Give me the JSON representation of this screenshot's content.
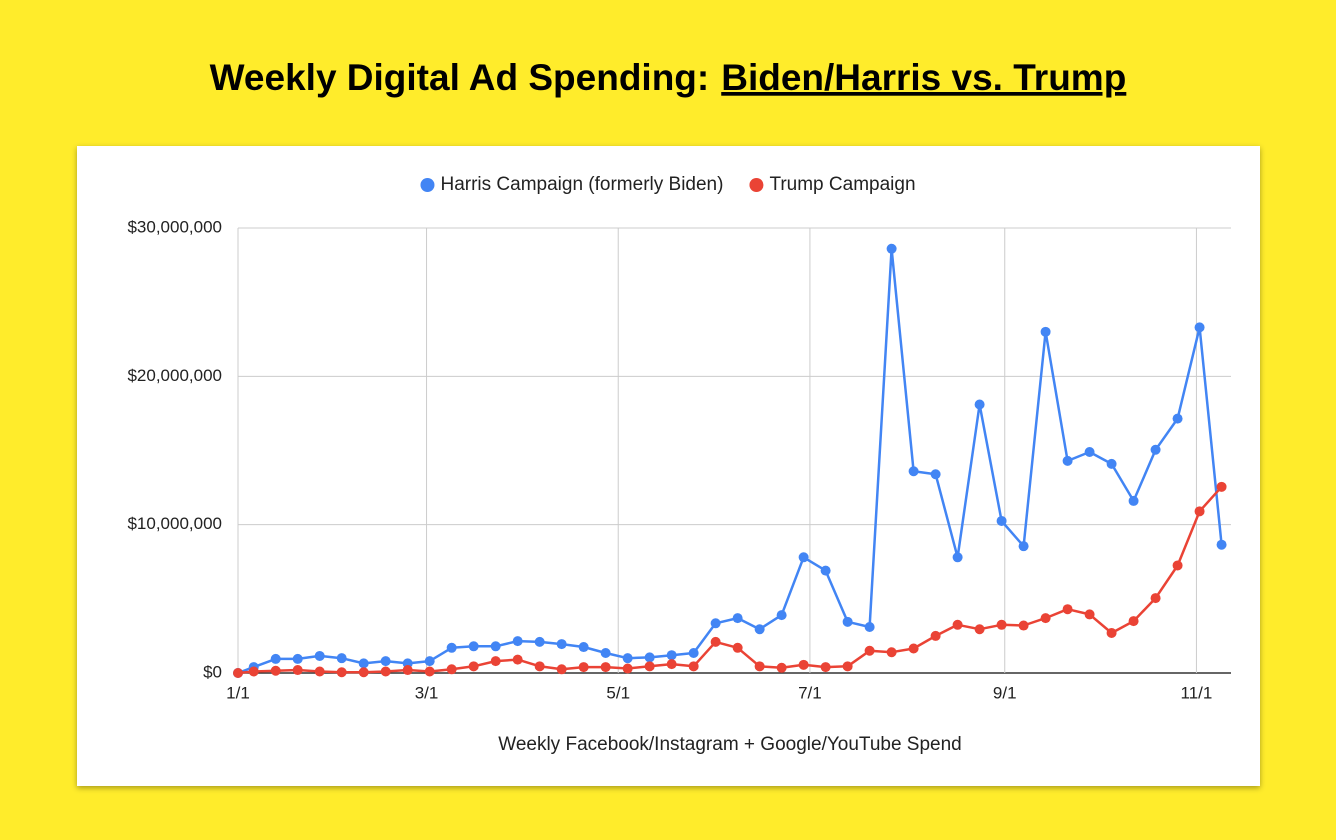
{
  "chart_data": {
    "type": "line",
    "title": "Weekly Digital Ad Spending:",
    "title_emphasis": "Biden/Harris vs. Trump",
    "x_label": "Weekly Facebook/Instagram + Google/YouTube Spend",
    "x": [
      0,
      5,
      12,
      19,
      26,
      33,
      40,
      47,
      54,
      61,
      68,
      75,
      82,
      89,
      96,
      103,
      110,
      117,
      124,
      131,
      138,
      145,
      152,
      159,
      166,
      173,
      180,
      187,
      194,
      201,
      208,
      215,
      222,
      229,
      236,
      243,
      250,
      257,
      264,
      271,
      278,
      285,
      292,
      299,
      306,
      313
    ],
    "xlim": [
      0,
      316
    ],
    "xticks": [
      {
        "value": 0,
        "label": "1/1"
      },
      {
        "value": 60,
        "label": "3/1"
      },
      {
        "value": 121,
        "label": "5/1"
      },
      {
        "value": 182,
        "label": "7/1"
      },
      {
        "value": 244,
        "label": "9/1"
      },
      {
        "value": 305,
        "label": "11/1"
      }
    ],
    "ylim": [
      0,
      30000000
    ],
    "yticks": [
      {
        "value": 0,
        "label": "$0"
      },
      {
        "value": 10000000,
        "label": "$10,000,000"
      },
      {
        "value": 20000000,
        "label": "$20,000,000"
      },
      {
        "value": 30000000,
        "label": "$30,000,000"
      }
    ],
    "grid": true,
    "legend": "top",
    "series": [
      {
        "name": "Harris Campaign (formerly Biden)",
        "color": "#4285f4",
        "values": [
          0,
          400000,
          950000,
          950000,
          1150000,
          1000000,
          650000,
          800000,
          650000,
          800000,
          1700000,
          1800000,
          1800000,
          2150000,
          2100000,
          1950000,
          1750000,
          1350000,
          1000000,
          1050000,
          1200000,
          1350000,
          3350000,
          3700000,
          2950000,
          3900000,
          7800000,
          6900000,
          3450000,
          3100000,
          28600000,
          13600000,
          13400000,
          7800000,
          18100000,
          10250000,
          8550000,
          23000000,
          14300000,
          14900000,
          14100000,
          11600000,
          15050000,
          17150000,
          23300000,
          8650000
        ]
      },
      {
        "name": "Trump Campaign",
        "color": "#ea4335",
        "values": [
          0,
          100000,
          150000,
          200000,
          100000,
          50000,
          50000,
          100000,
          200000,
          100000,
          250000,
          450000,
          800000,
          900000,
          450000,
          250000,
          400000,
          400000,
          300000,
          450000,
          600000,
          450000,
          2100000,
          1700000,
          450000,
          350000,
          550000,
          400000,
          450000,
          1500000,
          1400000,
          1650000,
          2500000,
          3250000,
          2950000,
          3250000,
          3200000,
          3700000,
          4300000,
          3950000,
          2700000,
          3500000,
          5050000,
          7250000,
          10900000,
          12550000
        ]
      }
    ]
  }
}
